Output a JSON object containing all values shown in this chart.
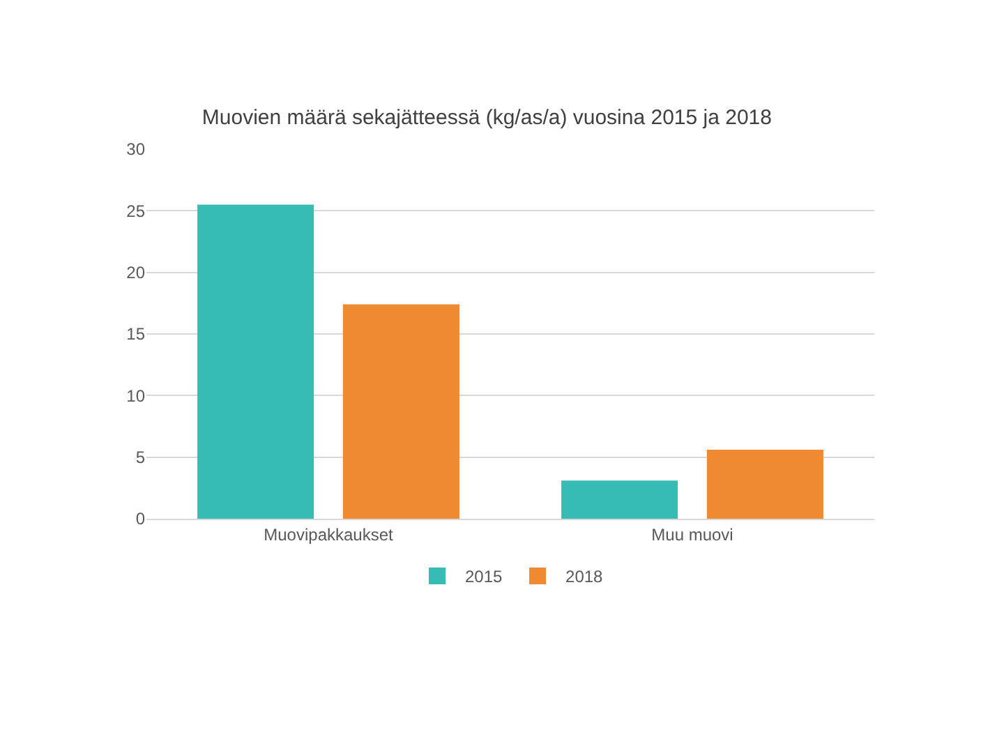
{
  "chart_data": {
    "type": "bar",
    "title": "Muovien määrä sekajätteessä (kg/as/a) vuosina 2015 ja 2018",
    "categories": [
      "Muovipakkaukset",
      "Muu muovi"
    ],
    "series": [
      {
        "name": "2015",
        "color": "#36bcb4",
        "values": [
          25.5,
          3.1
        ]
      },
      {
        "name": "2018",
        "color": "#f08a32",
        "values": [
          17.4,
          5.6
        ]
      }
    ],
    "ylim": [
      0,
      30
    ],
    "yticks": [
      0,
      5,
      10,
      15,
      20,
      25,
      30
    ],
    "grid": "y",
    "legend": "bottom"
  }
}
